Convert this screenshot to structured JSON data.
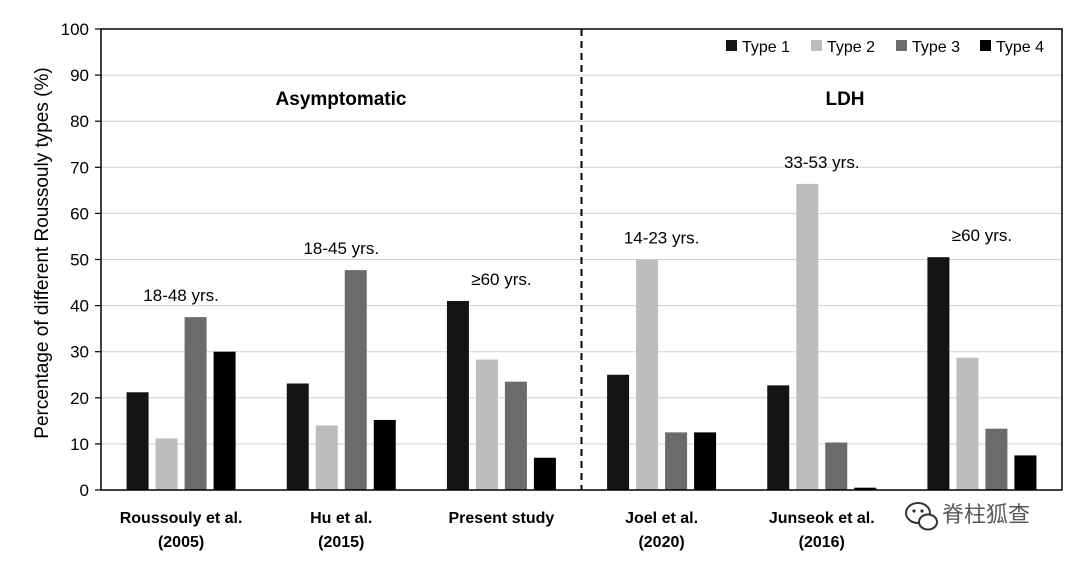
{
  "chart_data": {
    "type": "bar",
    "ylabel": "Percentage of different Roussouly types (%)",
    "ylim": [
      0,
      100
    ],
    "yticks": [
      0,
      10,
      20,
      30,
      40,
      50,
      60,
      70,
      80,
      90,
      100
    ],
    "grid": true,
    "legend_position": "top-right",
    "categories": [
      [
        "Roussouly et al.",
        "(2005)"
      ],
      [
        "Hu et al.",
        "(2015)"
      ],
      [
        "Present study",
        ""
      ],
      [
        "Joel et al.",
        "(2020)"
      ],
      [
        "Junseok et al.",
        "(2016)"
      ],
      [
        "",
        ""
      ]
    ],
    "series": [
      {
        "name": "Type 1",
        "color": "#141414",
        "values": [
          21.2,
          23.1,
          41.0,
          25.0,
          22.7,
          50.5
        ]
      },
      {
        "name": "Type 2",
        "color": "#bdbdbd",
        "values": [
          11.2,
          14.0,
          28.3,
          50.0,
          66.4,
          28.7
        ]
      },
      {
        "name": "Type 3",
        "color": "#6b6b6b",
        "values": [
          37.5,
          47.7,
          23.5,
          12.5,
          10.3,
          13.3
        ]
      },
      {
        "name": "Type 4",
        "color": "#000000",
        "values": [
          30.0,
          15.2,
          7.0,
          12.5,
          0.5,
          7.5
        ]
      }
    ],
    "group_labels": [
      "Asymptomatic",
      "LDH"
    ],
    "age_labels": [
      "18-48 yrs.",
      "18-45 yrs.",
      "≥60 yrs.",
      "14-23 yrs.",
      "33-53 yrs.",
      "≥60 yrs."
    ],
    "divider_after_category": 2
  },
  "watermark": {
    "text": "脊柱狐查",
    "icon": "wechat-icon"
  }
}
